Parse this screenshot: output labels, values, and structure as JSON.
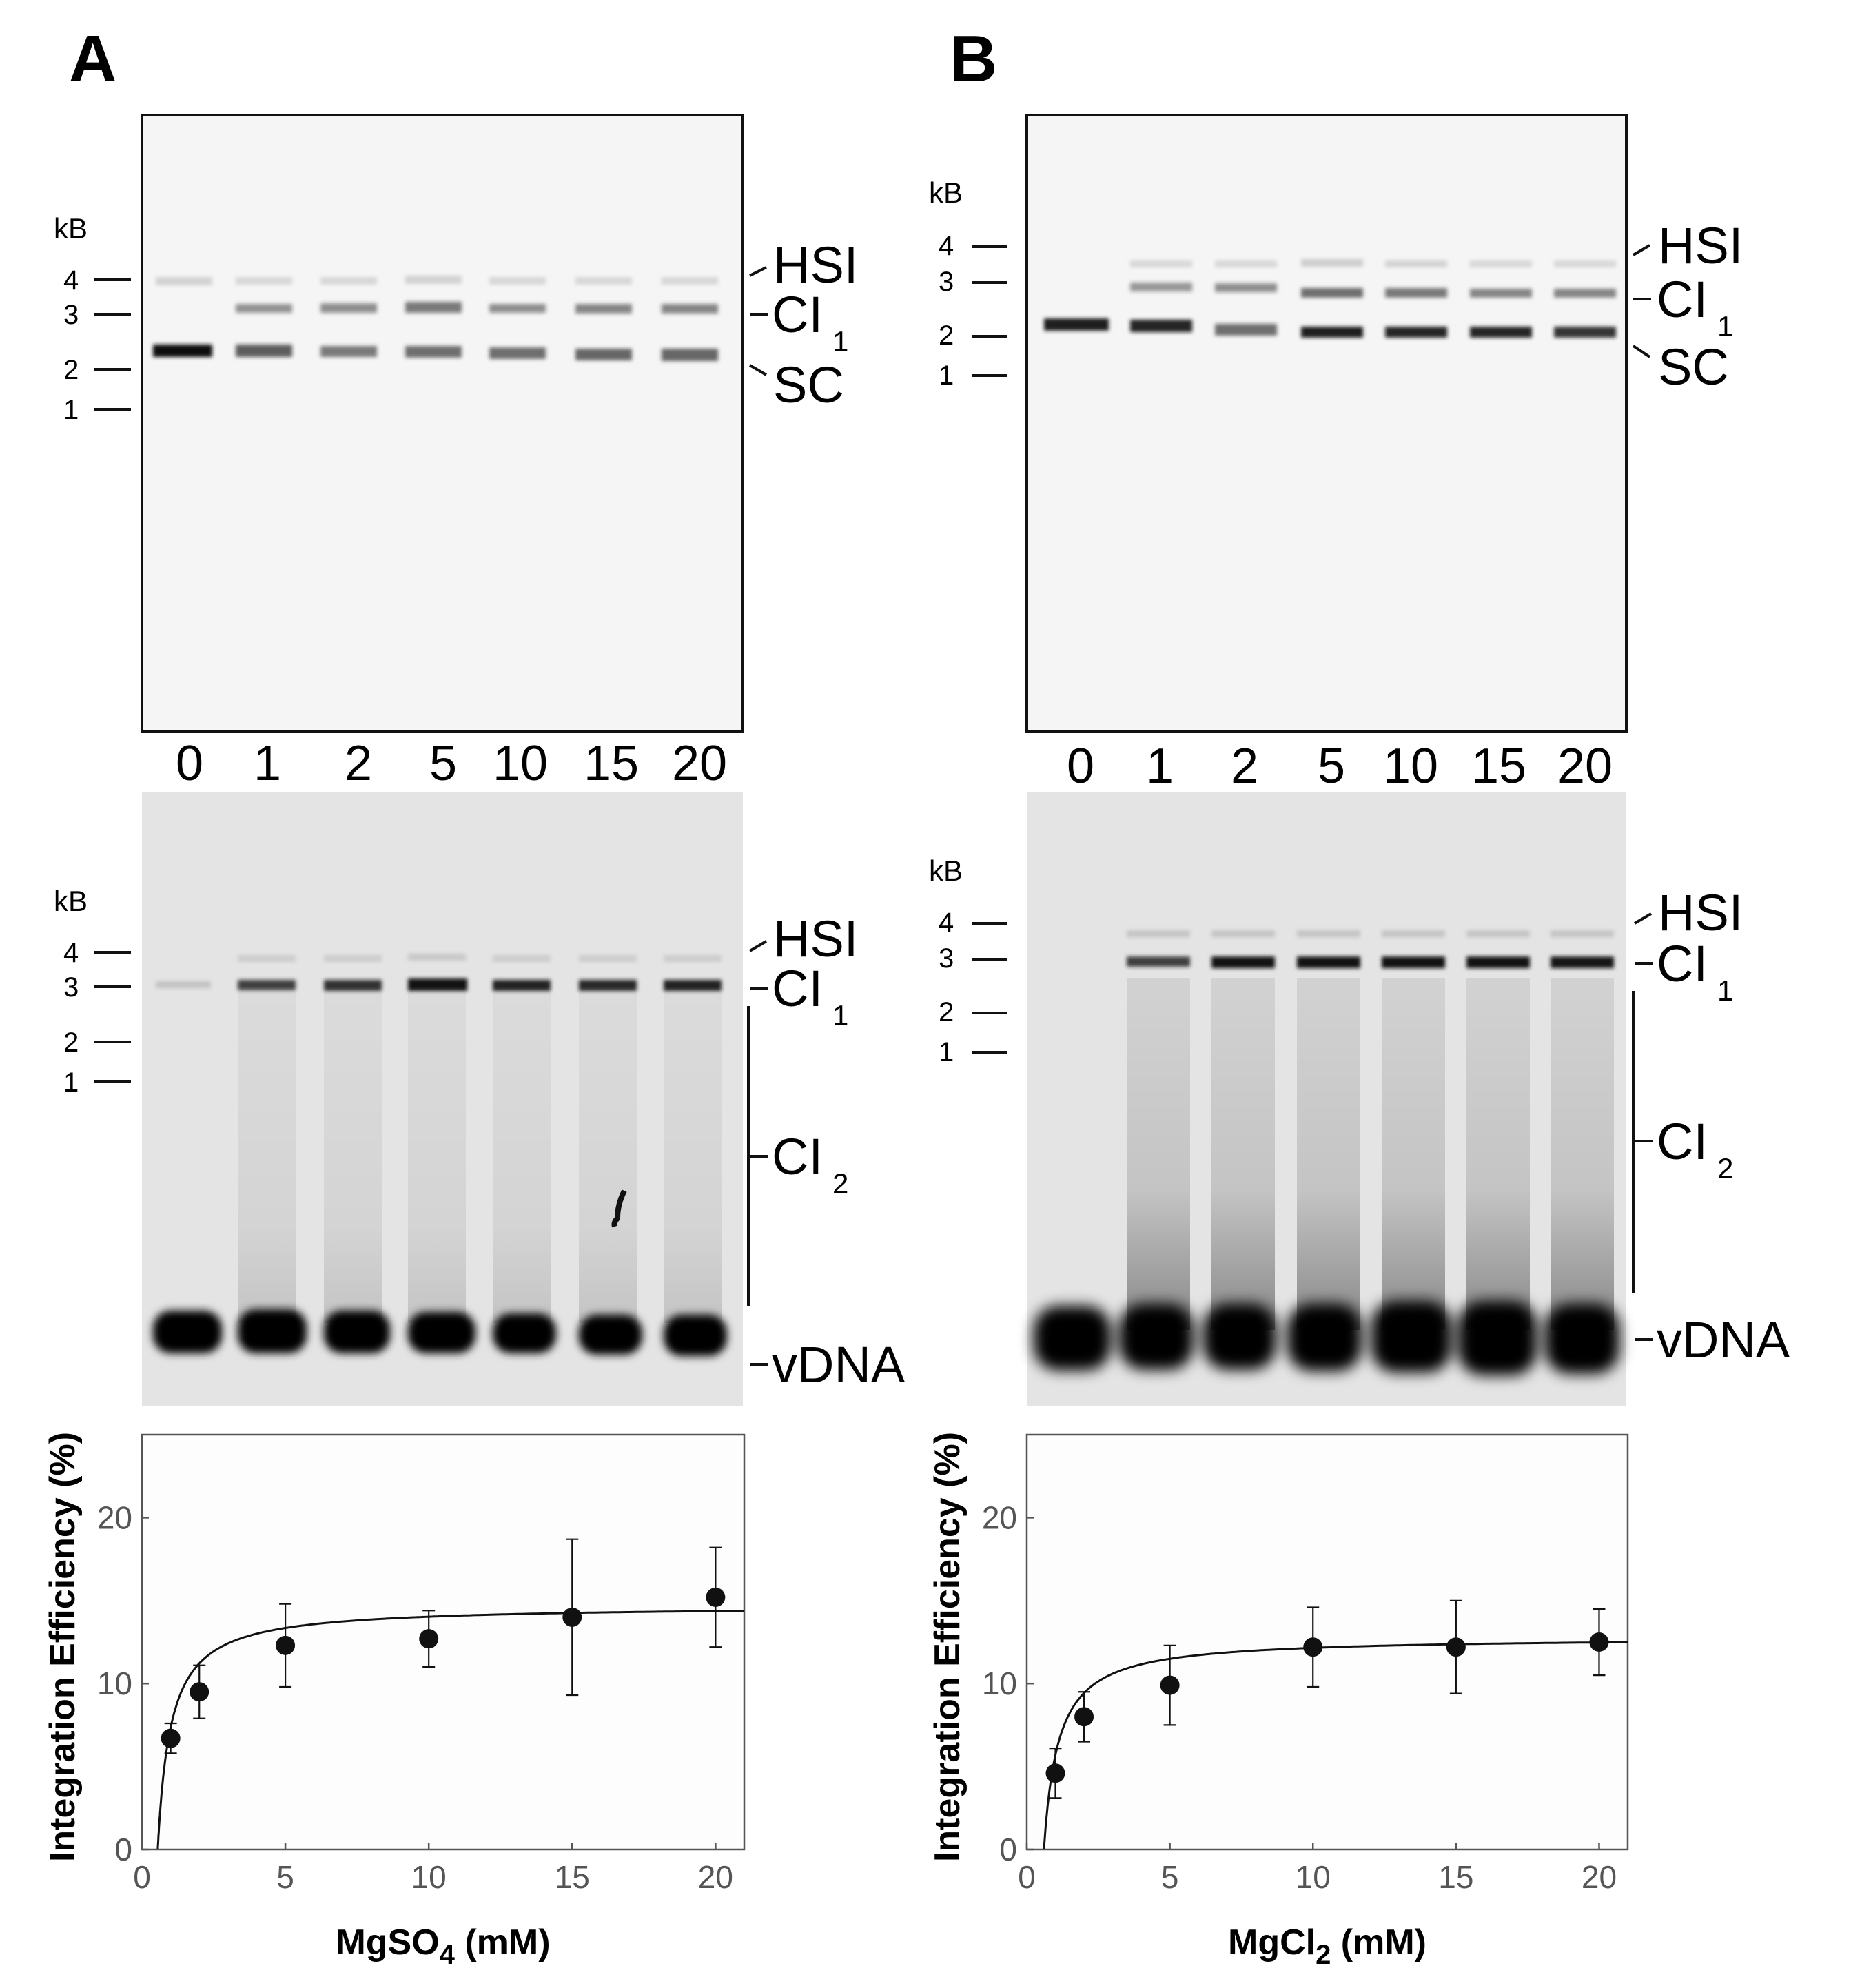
{
  "figure": {
    "panels": [
      {
        "letter": "A",
        "lane_labels": [
          "0",
          "1",
          "2",
          "5",
          "10",
          "15",
          "20"
        ],
        "gel1": {
          "kb_title": "kB",
          "ladder": [
            "4",
            "3",
            "2",
            "1"
          ],
          "band_labels": {
            "HSI": "HSI",
            "CI": "CI",
            "CI_sub": "1",
            "SC": "SC"
          }
        },
        "gel2": {
          "kb_title": "kB",
          "ladder": [
            "4",
            "3",
            "2",
            "1"
          ],
          "band_labels": {
            "HSI": "HSI",
            "CI1": "CI",
            "CI1_sub": "1",
            "CI2": "CI",
            "CI2_sub": "2",
            "vDNA": "vDNA"
          }
        },
        "plot": {
          "ylabel": "Integration Efficiency (%)",
          "xlabel_main": "MgSO",
          "xlabel_sub": "4",
          "xlabel_tail": " (mM)",
          "xticks": [
            "0",
            "5",
            "10",
            "15",
            "20"
          ],
          "yticks": [
            "0",
            "10",
            "20"
          ]
        }
      },
      {
        "letter": "B",
        "lane_labels": [
          "0",
          "1",
          "2",
          "5",
          "10",
          "15",
          "20"
        ],
        "gel1": {
          "kb_title": "kB",
          "ladder": [
            "4",
            "3",
            "2",
            "1"
          ],
          "band_labels": {
            "HSI": "HSI",
            "CI": "CI",
            "CI_sub": "1",
            "SC": "SC"
          }
        },
        "gel2": {
          "kb_title": "kB",
          "ladder": [
            "4",
            "3",
            "2",
            "1"
          ],
          "band_labels": {
            "HSI": "HSI",
            "CI1": "CI",
            "CI1_sub": "1",
            "CI2": "CI",
            "CI2_sub": "2",
            "vDNA": "vDNA"
          }
        },
        "plot": {
          "ylabel": "Integration Efficiency (%)",
          "xlabel_main": "MgCl",
          "xlabel_sub": "2",
          "xlabel_tail": " (mM)",
          "xticks": [
            "0",
            "5",
            "10",
            "15",
            "20"
          ],
          "yticks": [
            "0",
            "10",
            "20"
          ]
        }
      }
    ]
  },
  "chart_data": [
    {
      "type": "scatter",
      "title": "",
      "xlabel": "MgSO4 (mM)",
      "ylabel": "Integration Efficiency (%)",
      "xlim": [
        0,
        21
      ],
      "ylim": [
        0,
        25
      ],
      "x": [
        1,
        2,
        5,
        10,
        15,
        20
      ],
      "y": [
        6.7,
        9.5,
        12.3,
        12.7,
        14.0,
        15.2
      ],
      "error": [
        0.9,
        1.6,
        2.5,
        1.7,
        4.7,
        3.0
      ],
      "fit": {
        "type": "hyperbolic",
        "ymax": 14.7,
        "k": 0.45,
        "x0": 0.55
      },
      "grid": false
    },
    {
      "type": "scatter",
      "title": "",
      "xlabel": "MgCl2 (mM)",
      "ylabel": "Integration Efficiency (%)",
      "xlim": [
        0,
        21
      ],
      "ylim": [
        0,
        25
      ],
      "x": [
        1,
        2,
        5,
        10,
        15,
        20
      ],
      "y": [
        4.6,
        8.0,
        9.9,
        12.2,
        12.2,
        12.5
      ],
      "error": [
        1.5,
        1.5,
        2.4,
        2.4,
        2.8,
        2.0
      ],
      "fit": {
        "type": "hyperbolic",
        "ymax": 12.8,
        "k": 0.5,
        "x0": 0.6
      },
      "grid": false
    }
  ]
}
